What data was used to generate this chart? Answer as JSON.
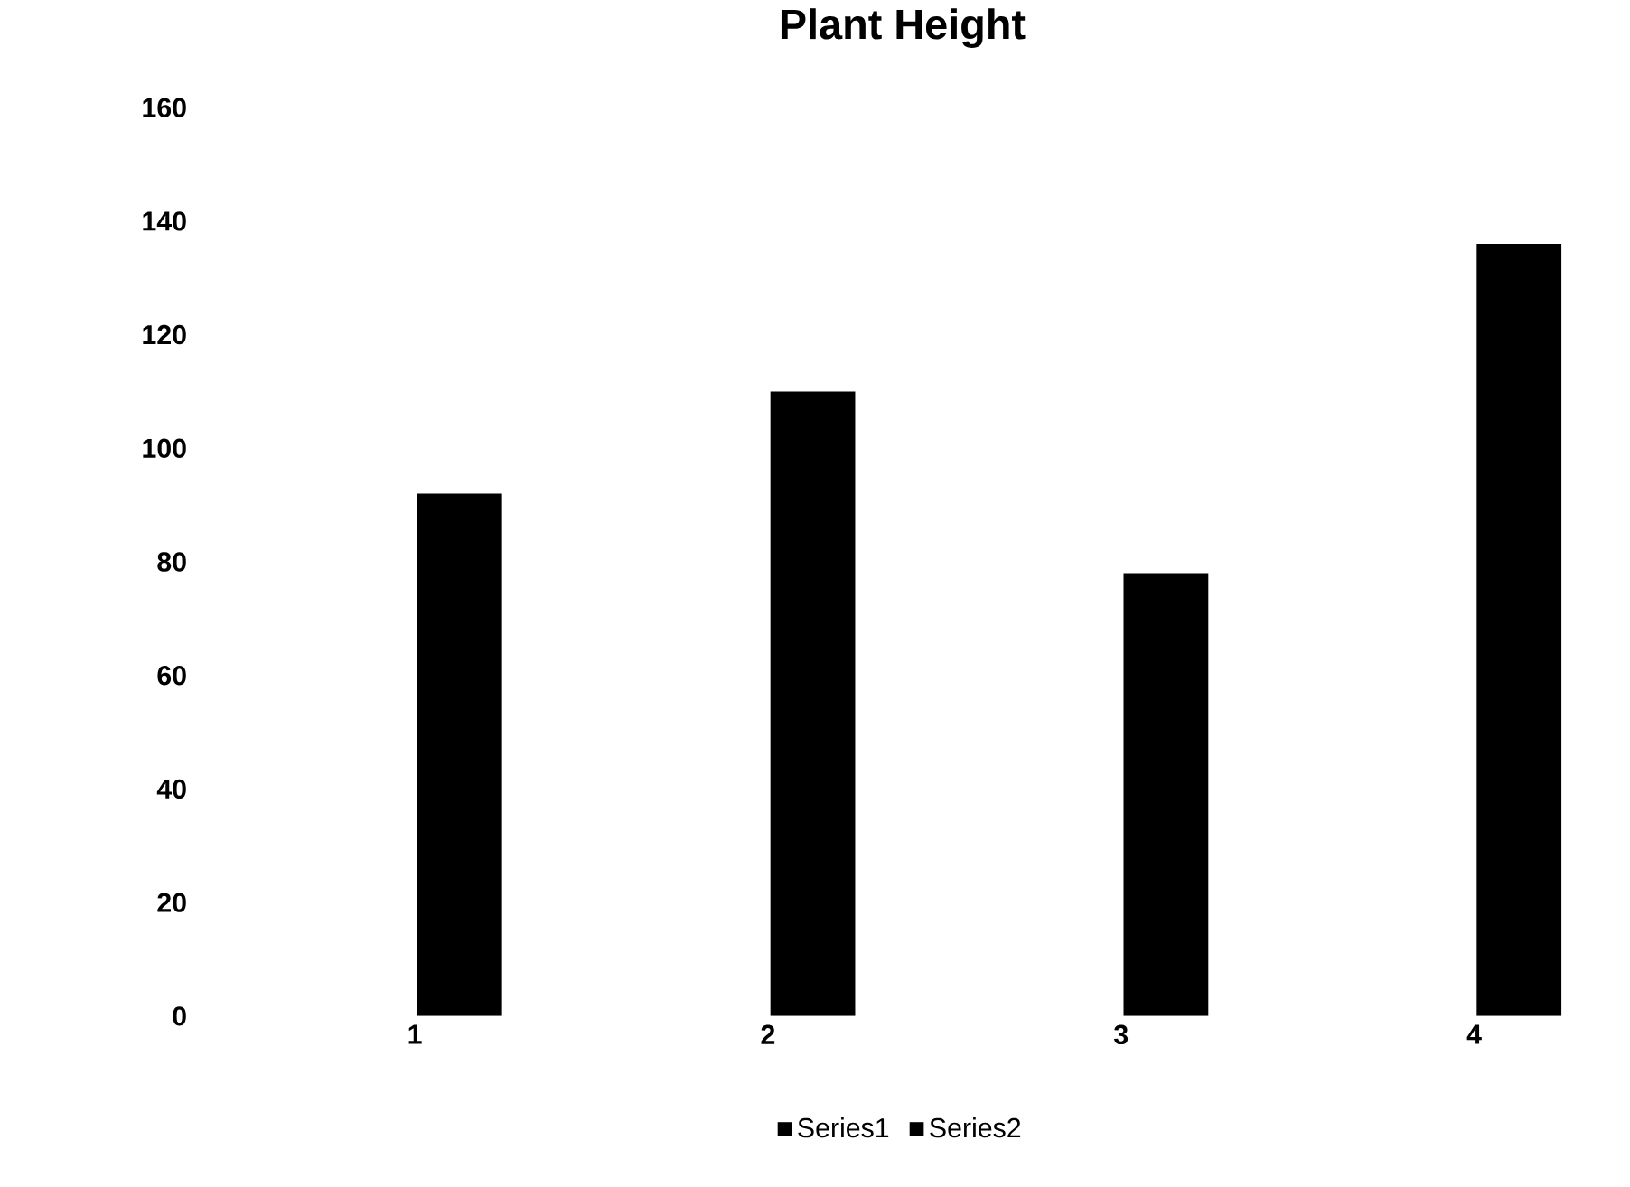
{
  "chart_data": {
    "type": "bar",
    "title": "Plant Height",
    "categories": [
      "1",
      "2",
      "3",
      "4"
    ],
    "series": [
      {
        "name": "Series1",
        "color": "#000000",
        "values": [
          92,
          110,
          78,
          136
        ]
      },
      {
        "name": "Series2",
        "color": "#000000",
        "values": [
          null,
          null,
          null,
          null
        ]
      }
    ],
    "ylim": [
      0,
      160
    ],
    "yticks": [
      0,
      20,
      40,
      60,
      80,
      100,
      120,
      140,
      160
    ],
    "legend": "bottom",
    "grid": false
  }
}
